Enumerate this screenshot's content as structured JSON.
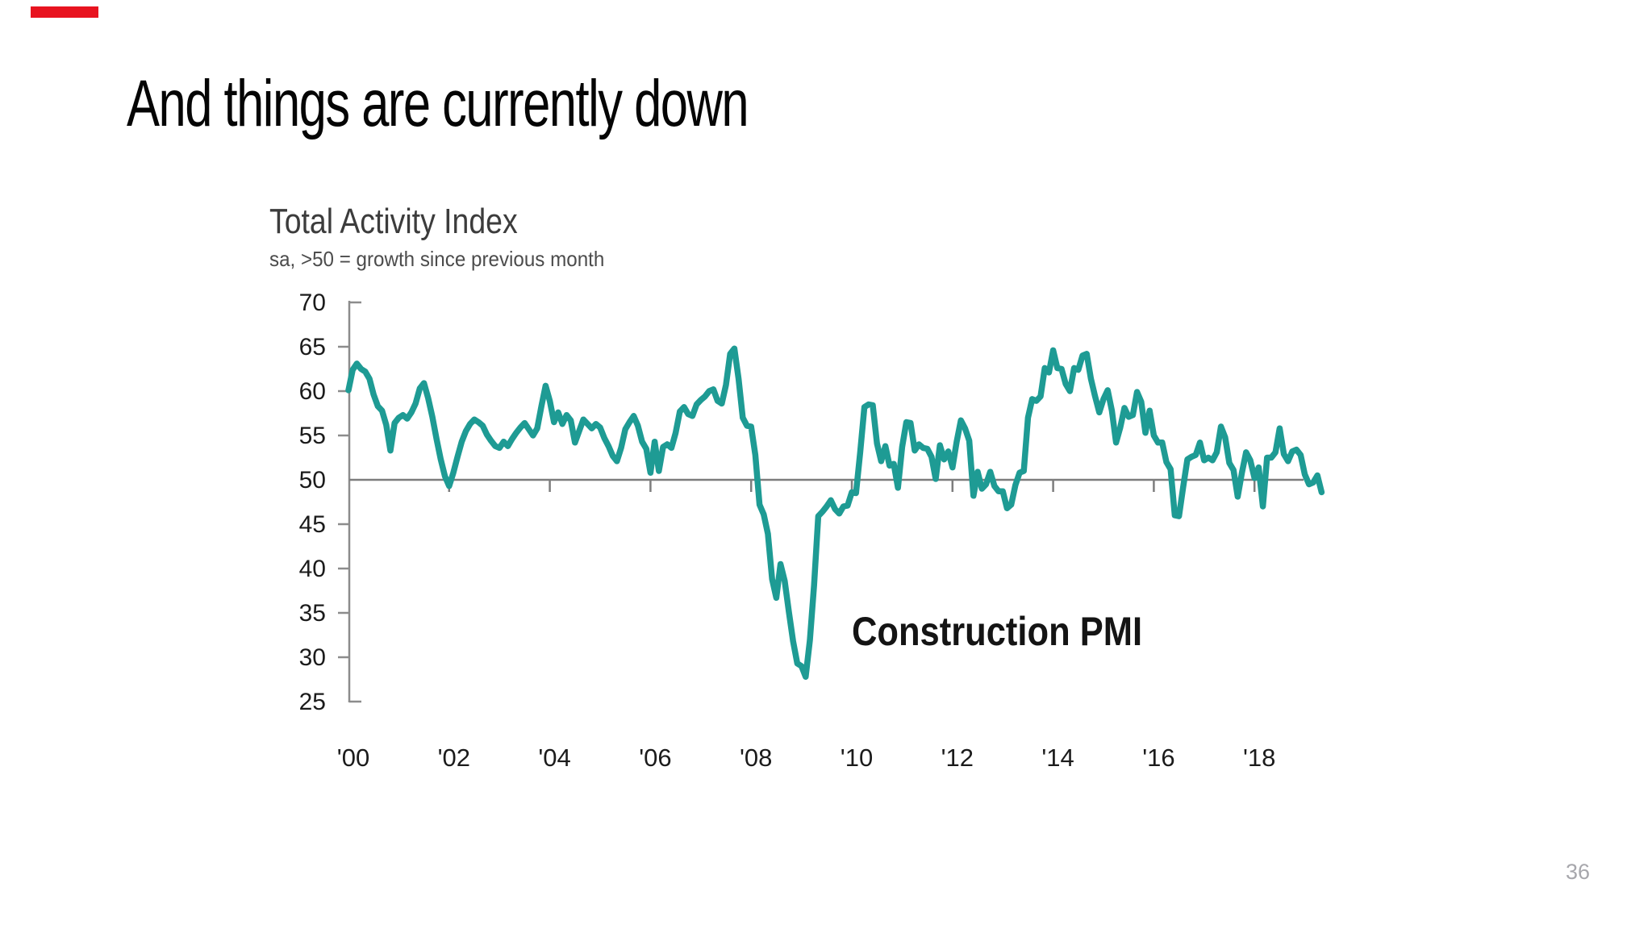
{
  "slide": {
    "title": "And things are currently down",
    "page_number": "36",
    "accent_color": "#e8131f"
  },
  "chart": {
    "title": "Total Activity Index",
    "subtitle": "sa, >50 = growth since previous month",
    "series_label": "Construction PMI"
  },
  "chart_data": {
    "type": "line",
    "title": "Total Activity Index",
    "subtitle": "sa, >50 = growth since previous month",
    "series_name": "Construction PMI",
    "line_color": "#1e9b94",
    "reference_line": 50,
    "ylim": [
      25,
      70
    ],
    "y_ticks": [
      70,
      65,
      60,
      55,
      50,
      45,
      40,
      35,
      30,
      25
    ],
    "x_tick_years": [
      2000,
      2002,
      2004,
      2006,
      2008,
      2010,
      2012,
      2014,
      2016,
      2018
    ],
    "x_tick_labels": [
      "'00",
      "'02",
      "'04",
      "'06",
      "'08",
      "'10",
      "'12",
      "'14",
      "'16",
      "'18"
    ],
    "start_year": 2000,
    "frequency": "monthly",
    "values": [
      60.1,
      62.4,
      63.1,
      62.5,
      62.2,
      61.4,
      59.6,
      58.3,
      57.8,
      56.2,
      53.3,
      56.4,
      57.0,
      57.3,
      56.9,
      57.6,
      58.6,
      60.3,
      60.9,
      59.2,
      57.1,
      54.6,
      52.3,
      50.4,
      49.3,
      50.8,
      52.6,
      54.3,
      55.5,
      56.3,
      56.8,
      56.5,
      56.1,
      55.1,
      54.4,
      53.8,
      53.6,
      54.3,
      53.8,
      54.6,
      55.3,
      55.9,
      56.4,
      55.7,
      55.0,
      55.8,
      58.3,
      60.6,
      58.9,
      56.5,
      57.6,
      56.3,
      57.3,
      56.7,
      54.2,
      55.5,
      56.8,
      56.3,
      55.8,
      56.3,
      55.9,
      54.7,
      53.8,
      52.7,
      52.1,
      53.6,
      55.7,
      56.5,
      57.2,
      56.1,
      54.3,
      53.5,
      50.8,
      54.3,
      51.0,
      53.7,
      54.0,
      53.6,
      55.3,
      57.7,
      58.2,
      57.4,
      57.2,
      58.5,
      59.0,
      59.4,
      60.0,
      60.2,
      58.9,
      58.6,
      60.7,
      64.2,
      64.8,
      61.4,
      57.0,
      56.1,
      56.0,
      52.8,
      47.2,
      46.1,
      43.9,
      38.8,
      36.7,
      40.5,
      38.6,
      35.1,
      31.8,
      29.3,
      29.0,
      27.8,
      31.9,
      38.1,
      45.9,
      46.4,
      47.0,
      47.7,
      46.7,
      46.2,
      47.0,
      47.1,
      48.6,
      48.5,
      53.1,
      58.2,
      58.5,
      58.4,
      54.1,
      52.1,
      53.8,
      51.6,
      51.8,
      49.1,
      53.7,
      56.5,
      56.4,
      53.3,
      54.0,
      53.6,
      53.5,
      52.6,
      50.1,
      53.9,
      52.3,
      53.2,
      51.4,
      54.3,
      56.7,
      55.8,
      54.4,
      48.2,
      50.9,
      49.0,
      49.5,
      50.9,
      49.3,
      48.7,
      48.7,
      46.8,
      47.2,
      49.4,
      50.8,
      51.0,
      57.0,
      59.1,
      58.9,
      59.4,
      62.6,
      62.1,
      64.6,
      62.6,
      62.5,
      60.8,
      60.0,
      62.6,
      62.4,
      64.0,
      64.2,
      61.4,
      59.4,
      57.6,
      59.1,
      60.1,
      57.8,
      54.2,
      55.9,
      58.1,
      57.1,
      57.3,
      59.9,
      58.8,
      55.3,
      57.8,
      55.0,
      54.2,
      54.2,
      52.0,
      51.2,
      46.0,
      45.9,
      49.2,
      52.3,
      52.6,
      52.8,
      54.2,
      52.2,
      52.5,
      52.2,
      53.1,
      56.0,
      54.8,
      51.9,
      51.1,
      48.1,
      50.8,
      53.1,
      52.2,
      50.2,
      51.4,
      47.0,
      52.5,
      52.5,
      53.1,
      55.8,
      52.9,
      52.1,
      53.2,
      53.4,
      52.8,
      50.6,
      49.5,
      49.7,
      50.5,
      48.6
    ]
  }
}
